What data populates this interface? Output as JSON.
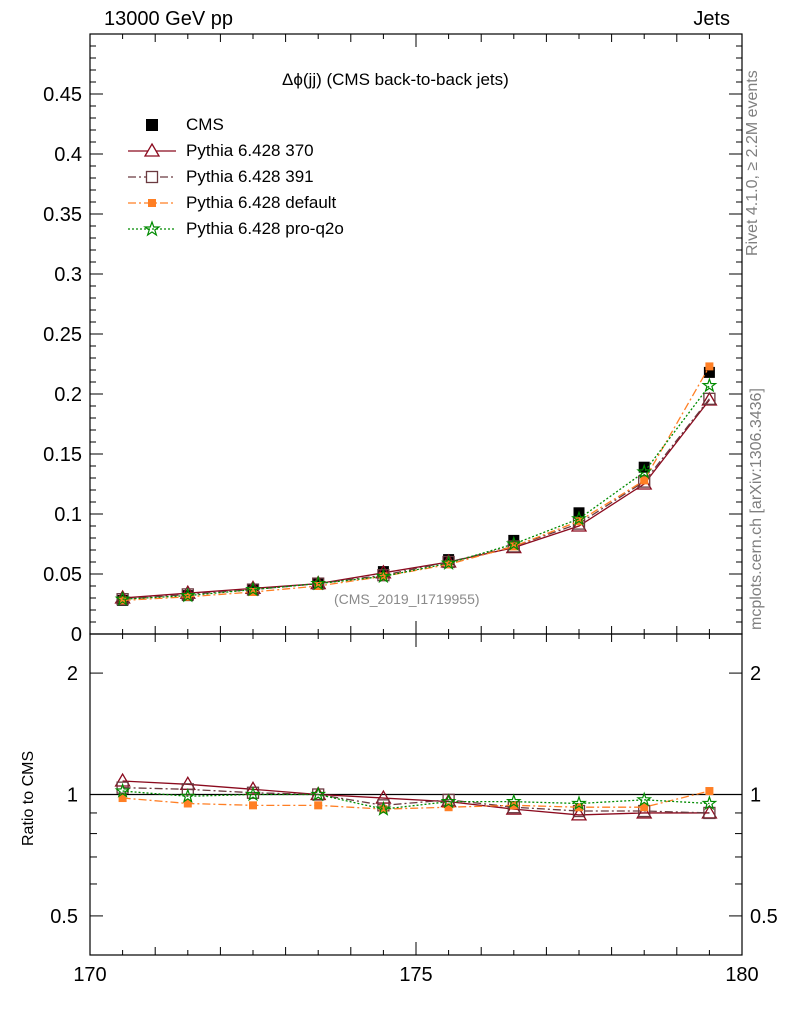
{
  "header": {
    "left": "13000 GeV pp",
    "right": "Jets"
  },
  "side_labels": {
    "rivet": "Rivet 4.1.0, ≥ 2.2M events",
    "mcplots": "mcplots.cern.ch [arXiv:1306.3436]"
  },
  "analysis_tag": "(CMS_2019_I1719955)",
  "colors": {
    "cms": "#000000",
    "p370": "#8b0a1e",
    "p391": "#6b3a40",
    "default": "#ff7f24",
    "proq2o": "#008b00"
  },
  "chart_data": [
    {
      "type": "line",
      "panel": "main",
      "title": "Δϕ(jj) (CMS back-to-back jets)",
      "xlabel": "",
      "ylabel": "",
      "xlim": [
        170,
        180
      ],
      "ylim": [
        0,
        0.5
      ],
      "yticks": [
        0,
        0.05,
        0.1,
        0.15,
        0.2,
        0.25,
        0.3,
        0.35,
        0.4,
        0.45
      ],
      "ytick_labels": [
        "0",
        "0.05",
        "0.1",
        "0.15",
        "0.2",
        "0.25",
        "0.3",
        "0.35",
        "0.4",
        "0.45"
      ],
      "x": [
        170.5,
        171.5,
        172.5,
        173.5,
        174.5,
        175.5,
        176.5,
        177.5,
        178.5,
        179.5
      ],
      "series": [
        {
          "name": "CMS",
          "key": "cms",
          "marker": "square",
          "line": "none",
          "values": [
            0.028,
            0.032,
            0.037,
            0.042,
            0.052,
            0.062,
            0.078,
            0.101,
            0.139,
            0.218
          ]
        },
        {
          "name": "Pythia 6.428 370",
          "key": "p370",
          "marker": "triangle",
          "line": "solid",
          "values": [
            0.03,
            0.034,
            0.038,
            0.042,
            0.051,
            0.06,
            0.072,
            0.09,
            0.125,
            0.195
          ]
        },
        {
          "name": "Pythia 6.428 391",
          "key": "p391",
          "marker": "square-open",
          "line": "dashdot",
          "values": [
            0.029,
            0.033,
            0.037,
            0.042,
            0.049,
            0.06,
            0.073,
            0.092,
            0.127,
            0.196
          ]
        },
        {
          "name": "Pythia 6.428 default",
          "key": "default",
          "marker": "square-small",
          "line": "dashdot",
          "values": [
            0.028,
            0.031,
            0.035,
            0.04,
            0.048,
            0.058,
            0.073,
            0.094,
            0.128,
            0.223
          ]
        },
        {
          "name": "Pythia 6.428 pro-q2o",
          "key": "proq2o",
          "marker": "star",
          "line": "dotted",
          "values": [
            0.029,
            0.032,
            0.037,
            0.042,
            0.048,
            0.059,
            0.075,
            0.096,
            0.135,
            0.207
          ]
        }
      ]
    },
    {
      "type": "line",
      "panel": "ratio",
      "ylabel": "Ratio to CMS",
      "xlim": [
        170,
        180
      ],
      "ylim": [
        0.4,
        2.5
      ],
      "ylog": true,
      "yticks": [
        0.5,
        1,
        2
      ],
      "ytick_labels": [
        "0.5",
        "1",
        "2"
      ],
      "xticks": [
        170,
        175,
        180
      ],
      "xtick_labels": [
        "170",
        "175",
        "180"
      ],
      "x": [
        170.5,
        171.5,
        172.5,
        173.5,
        174.5,
        175.5,
        176.5,
        177.5,
        178.5,
        179.5
      ],
      "series": [
        {
          "name": "Pythia 6.428 370",
          "key": "p370",
          "values": [
            1.08,
            1.06,
            1.03,
            1.0,
            0.98,
            0.96,
            0.92,
            0.89,
            0.9,
            0.9
          ]
        },
        {
          "name": "Pythia 6.428 391",
          "key": "p391",
          "values": [
            1.04,
            1.03,
            1.01,
            1.0,
            0.94,
            0.97,
            0.93,
            0.91,
            0.91,
            0.9
          ]
        },
        {
          "name": "Pythia 6.428 default",
          "key": "default",
          "values": [
            0.98,
            0.95,
            0.94,
            0.94,
            0.92,
            0.93,
            0.94,
            0.93,
            0.93,
            1.02
          ]
        },
        {
          "name": "Pythia 6.428 pro-q2o",
          "key": "proq2o",
          "values": [
            1.02,
            0.99,
            1.0,
            1.0,
            0.92,
            0.96,
            0.96,
            0.95,
            0.97,
            0.95
          ]
        }
      ]
    }
  ]
}
